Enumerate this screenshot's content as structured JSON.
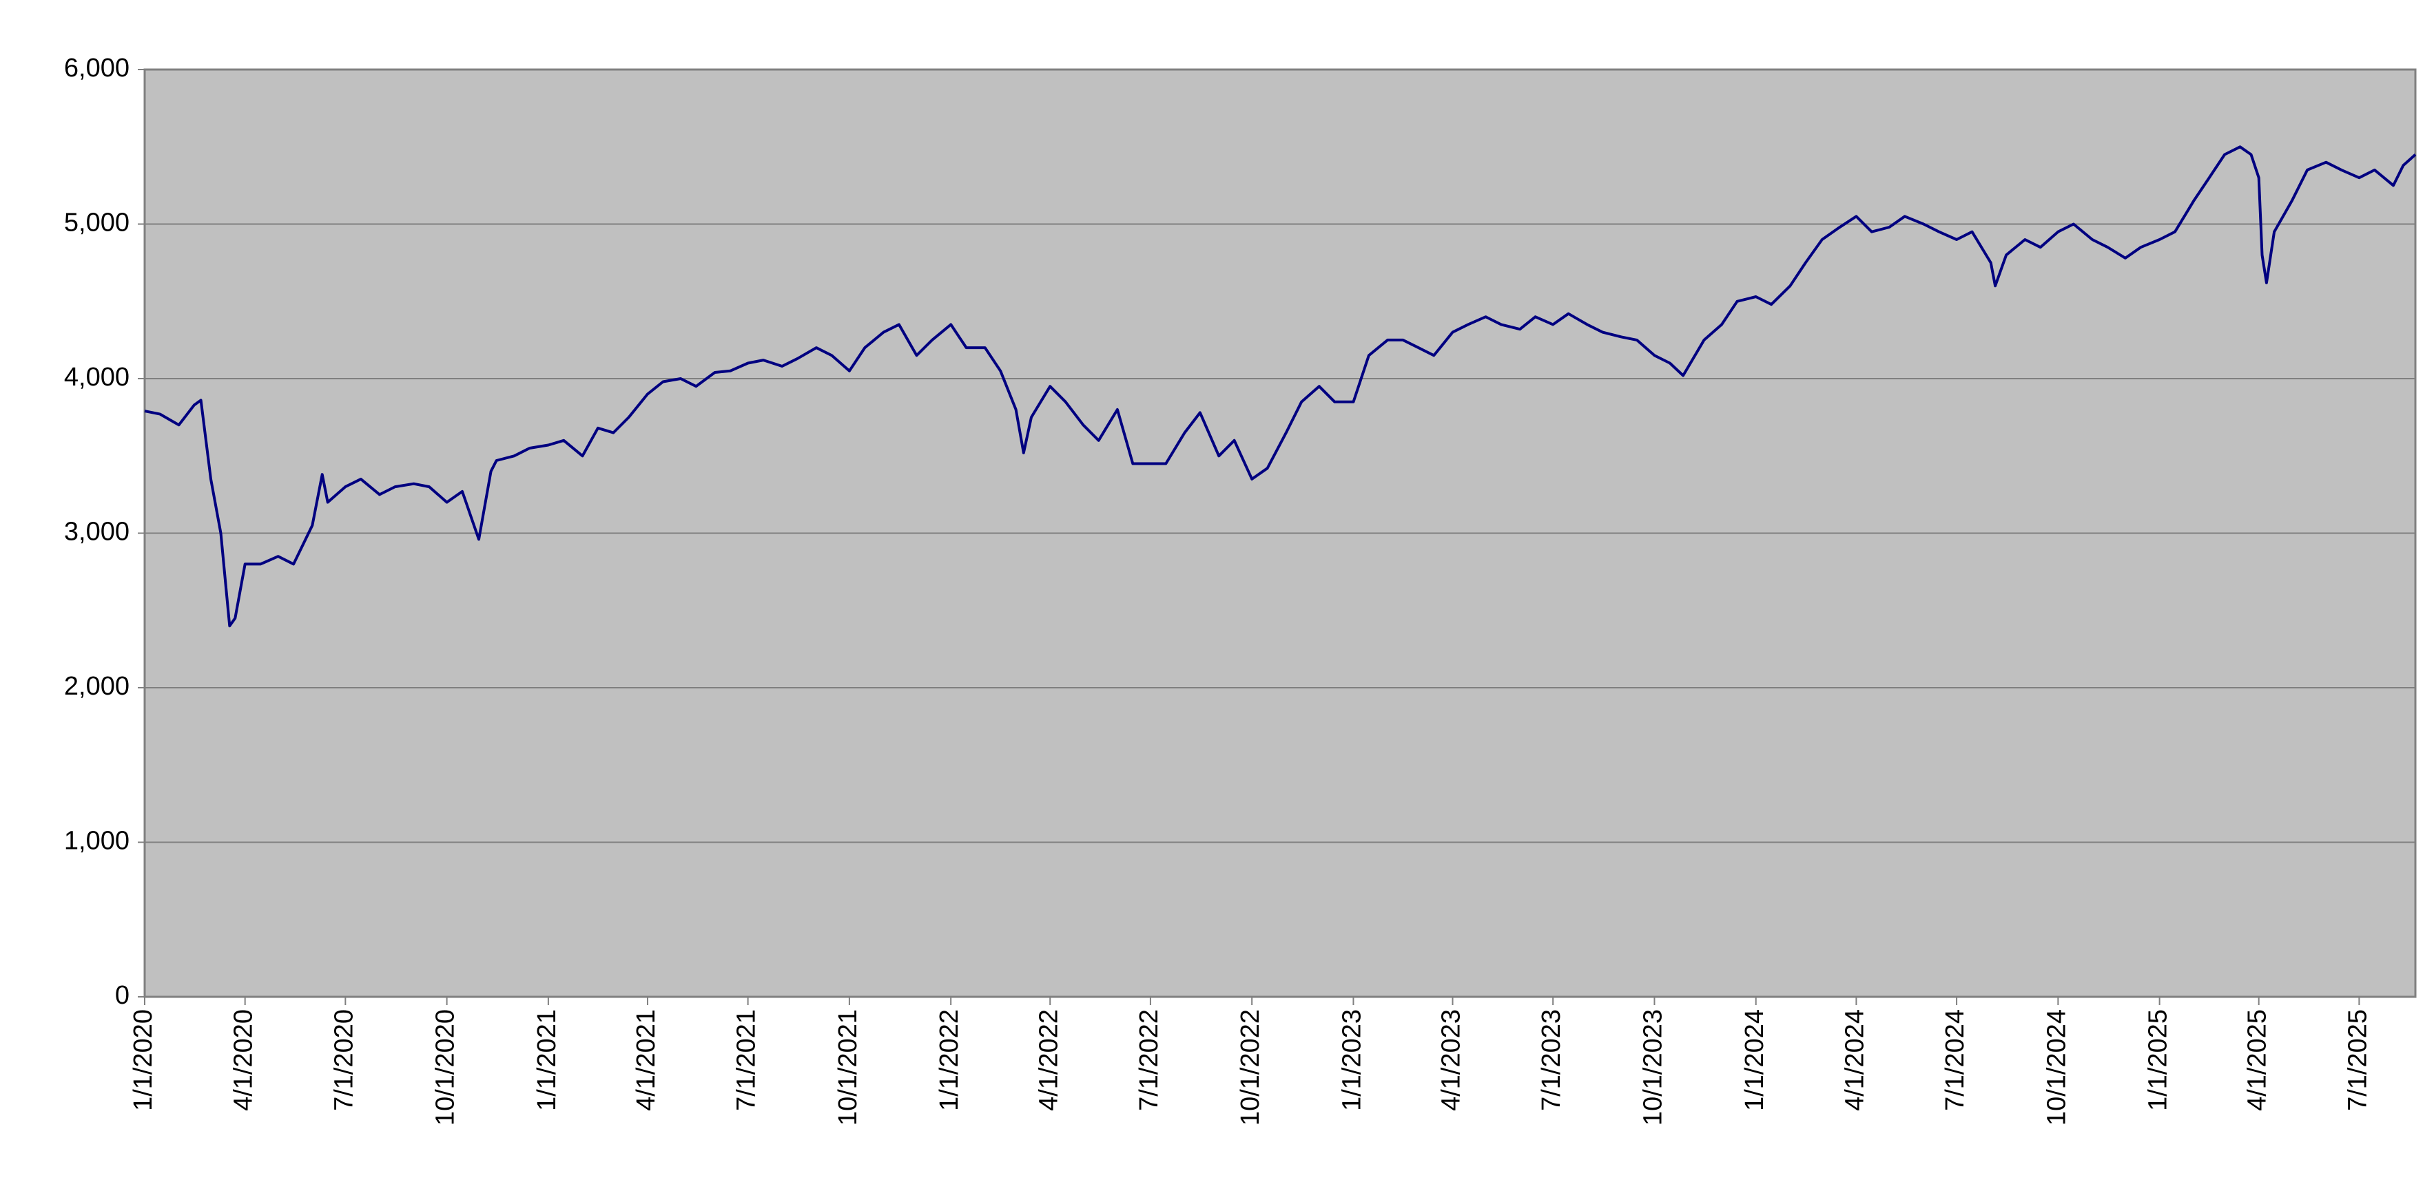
{
  "chart_data": {
    "type": "line",
    "color": "#000080",
    "x": [
      "1/1/2020",
      "1/15/2020",
      "2/1/2020",
      "2/15/2020",
      "2/21/2020",
      "3/1/2020",
      "3/10/2020",
      "3/16/2020",
      "3/18/2020",
      "3/23/2020",
      "4/1/2020",
      "4/15/2020",
      "5/1/2020",
      "5/15/2020",
      "6/1/2020",
      "6/10/2020",
      "6/15/2020",
      "7/1/2020",
      "7/15/2020",
      "8/1/2020",
      "8/15/2020",
      "9/1/2020",
      "9/15/2020",
      "10/1/2020",
      "10/15/2020",
      "10/30/2020",
      "11/10/2020",
      "11/15/2020",
      "12/1/2020",
      "12/15/2020",
      "1/1/2021",
      "1/15/2021",
      "2/1/2021",
      "2/15/2021",
      "3/1/2021",
      "3/15/2021",
      "4/1/2021",
      "4/15/2021",
      "5/1/2021",
      "5/15/2021",
      "6/1/2021",
      "6/15/2021",
      "7/1/2021",
      "7/15/2021",
      "8/1/2021",
      "8/15/2021",
      "9/1/2021",
      "9/15/2021",
      "10/1/2021",
      "10/15/2021",
      "11/1/2021",
      "11/15/2021",
      "12/1/2021",
      "12/15/2021",
      "1/1/2022",
      "1/15/2022",
      "2/1/2022",
      "2/15/2022",
      "3/1/2022",
      "3/8/2022",
      "3/15/2022",
      "4/1/2022",
      "4/15/2022",
      "5/1/2022",
      "5/15/2022",
      "6/1/2022",
      "6/15/2022",
      "7/1/2022",
      "7/15/2022",
      "8/1/2022",
      "8/15/2022",
      "9/1/2022",
      "9/15/2022",
      "10/1/2022",
      "10/15/2022",
      "11/1/2022",
      "11/15/2022",
      "12/1/2022",
      "12/15/2022",
      "1/1/2023",
      "1/15/2023",
      "2/1/2023",
      "2/15/2023",
      "3/1/2023",
      "3/15/2023",
      "4/1/2023",
      "4/15/2023",
      "5/1/2023",
      "5/15/2023",
      "6/1/2023",
      "6/15/2023",
      "7/1/2023",
      "7/15/2023",
      "8/1/2023",
      "8/15/2023",
      "9/1/2023",
      "9/15/2023",
      "10/1/2023",
      "10/15/2023",
      "10/27/2023",
      "11/15/2023",
      "12/1/2023",
      "12/15/2023",
      "1/1/2024",
      "1/15/2024",
      "2/1/2024",
      "2/15/2024",
      "3/1/2024",
      "3/15/2024",
      "4/1/2024",
      "4/15/2024",
      "5/1/2024",
      "5/15/2024",
      "6/1/2024",
      "6/15/2024",
      "7/1/2024",
      "7/15/2024",
      "8/1/2024",
      "8/5/2024",
      "8/15/2024",
      "9/1/2024",
      "9/15/2024",
      "10/1/2024",
      "10/15/2024",
      "11/1/2024",
      "11/15/2024",
      "12/1/2024",
      "12/15/2024",
      "1/1/2025",
      "1/15/2025",
      "2/1/2025",
      "2/15/2025",
      "3/1/2025",
      "3/15/2025",
      "3/25/2025",
      "4/1/2025",
      "4/4/2025",
      "4/8/2025",
      "4/15/2025",
      "5/1/2025",
      "5/15/2025",
      "6/1/2025",
      "6/15/2025",
      "7/1/2025",
      "7/15/2025",
      "8/1/2025",
      "8/10/2025",
      "8/21/2025"
    ],
    "values": [
      3790,
      3770,
      3700,
      3830,
      3860,
      3350,
      3000,
      2550,
      2400,
      2450,
      2800,
      2800,
      2850,
      2800,
      3050,
      3380,
      3200,
      3300,
      3350,
      3250,
      3300,
      3320,
      3300,
      3200,
      3270,
      2960,
      3400,
      3470,
      3500,
      3550,
      3570,
      3600,
      3500,
      3680,
      3650,
      3750,
      3900,
      3980,
      4000,
      3950,
      4040,
      4050,
      4100,
      4120,
      4080,
      4130,
      4200,
      4150,
      4050,
      4200,
      4300,
      4350,
      4150,
      4250,
      4350,
      4200,
      4200,
      4050,
      3800,
      3520,
      3750,
      3950,
      3850,
      3700,
      3600,
      3800,
      3450,
      3450,
      3450,
      3650,
      3780,
      3500,
      3600,
      3350,
      3420,
      3650,
      3850,
      3950,
      3850,
      3850,
      4150,
      4250,
      4250,
      4200,
      4150,
      4300,
      4350,
      4400,
      4350,
      4320,
      4400,
      4350,
      4420,
      4350,
      4300,
      4270,
      4250,
      4150,
      4100,
      4020,
      4250,
      4350,
      4500,
      4530,
      4480,
      4600,
      4750,
      4900,
      4970,
      5050,
      4950,
      4980,
      5050,
      5000,
      4950,
      4900,
      4950,
      4750,
      4600,
      4800,
      4900,
      4850,
      4950,
      5000,
      4900,
      4850,
      4780,
      4850,
      4900,
      4950,
      5150,
      5300,
      5450,
      5500,
      5450,
      5300,
      4800,
      4620,
      4950,
      5150,
      5350,
      5400,
      5350,
      5300,
      5350,
      5250,
      5380,
      5450
    ],
    "xlim": [
      "1/1/2020",
      "8/21/2025"
    ],
    "xticks": [
      "1/1/2020",
      "4/1/2020",
      "7/1/2020",
      "10/1/2020",
      "1/1/2021",
      "4/1/2021",
      "7/1/2021",
      "10/1/2021",
      "1/1/2022",
      "4/1/2022",
      "7/1/2022",
      "10/1/2022",
      "1/1/2023",
      "4/1/2023",
      "7/1/2023",
      "10/1/2023",
      "1/1/2024",
      "4/1/2024",
      "7/1/2024",
      "10/1/2024",
      "1/1/2025",
      "4/1/2025",
      "7/1/2025"
    ],
    "ylim": [
      0,
      6000
    ],
    "yticks": [
      0,
      {
        "value": 1000,
        "label": "1,000"
      },
      {
        "value": 2000,
        "label": "2,000"
      },
      {
        "value": 3000,
        "label": "3,000"
      },
      {
        "value": 4000,
        "label": "4,000"
      },
      {
        "value": 5000,
        "label": "5,000"
      },
      {
        "value": 6000,
        "label": "6,000"
      }
    ],
    "grid": true,
    "plot_background": "#c0c0c0"
  }
}
